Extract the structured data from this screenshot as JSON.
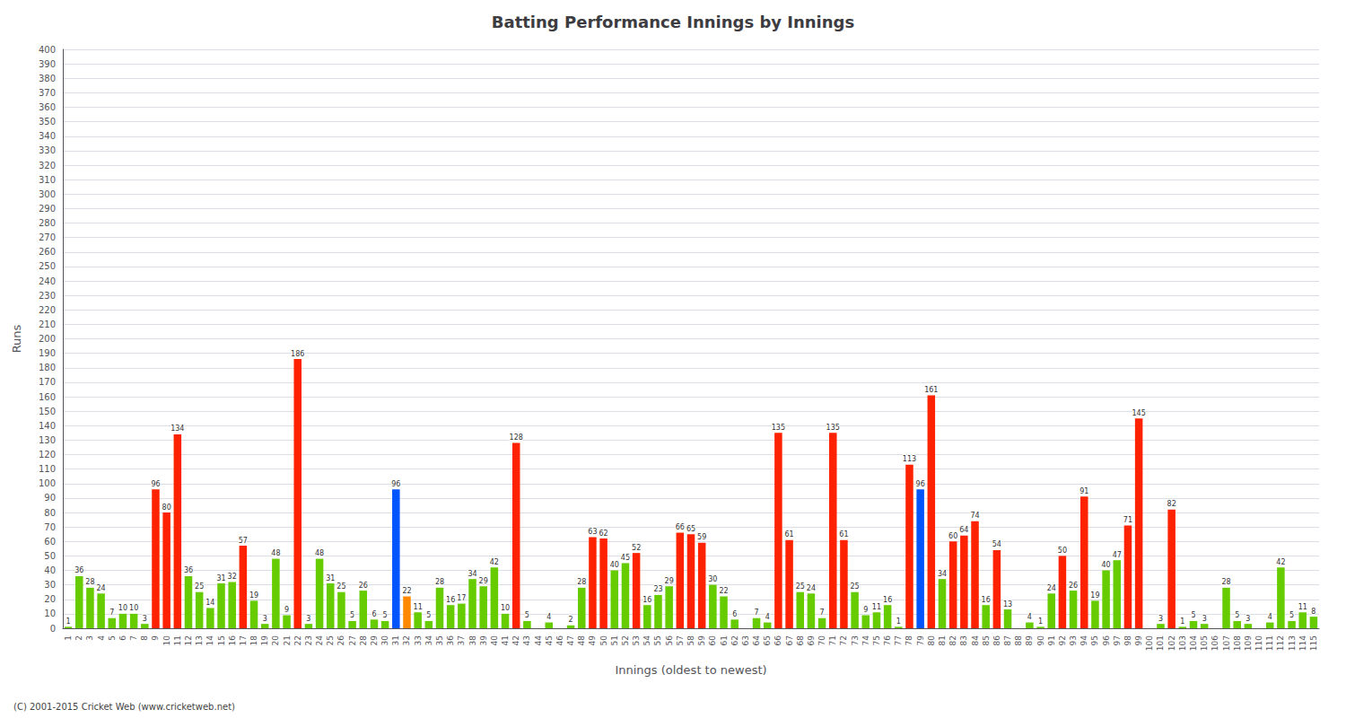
{
  "chart_data": {
    "type": "bar",
    "title": "Batting Performance Innings by Innings",
    "xlabel": "Innings (oldest to newest)",
    "ylabel": "Runs",
    "footnote": "(C) 2001-2015 Cricket Web (www.cricketweb.net)",
    "categories": [
      1,
      2,
      3,
      4,
      5,
      6,
      7,
      8,
      9,
      10,
      11,
      12,
      13,
      14,
      15,
      16,
      17,
      18,
      19,
      20,
      21,
      22,
      23,
      24,
      25,
      26,
      27,
      28,
      29,
      30,
      31,
      32,
      33,
      34,
      35,
      36,
      37,
      38,
      39,
      40,
      41,
      42,
      43,
      44,
      45,
      46,
      47,
      48,
      49,
      50,
      51,
      52,
      53,
      54,
      55,
      56,
      57,
      58,
      59,
      60,
      61,
      62,
      63,
      64,
      65,
      66,
      67,
      68,
      69,
      70,
      71,
      72,
      73,
      74,
      75,
      76,
      77,
      78,
      79,
      80,
      81,
      82,
      83,
      84,
      85,
      86,
      87,
      88,
      89,
      90,
      91,
      92,
      93,
      94,
      95,
      96,
      97,
      98,
      99,
      100,
      101,
      102,
      103,
      104,
      105,
      106,
      107,
      108,
      109,
      110,
      111,
      112,
      113,
      114,
      115
    ],
    "values": [
      1,
      36,
      28,
      24,
      7,
      10,
      10,
      3,
      96,
      80,
      134,
      36,
      25,
      14,
      31,
      32,
      57,
      19,
      3,
      48,
      9,
      186,
      3,
      48,
      31,
      25,
      5,
      26,
      6,
      5,
      96,
      22,
      11,
      5,
      28,
      16,
      17,
      34,
      29,
      42,
      10,
      128,
      5,
      0,
      4,
      0,
      2,
      28,
      63,
      62,
      40,
      45,
      52,
      16,
      23,
      29,
      66,
      65,
      59,
      30,
      22,
      6,
      0,
      7,
      4,
      135,
      61,
      25,
      24,
      7,
      135,
      61,
      25,
      9,
      11,
      16,
      1,
      113,
      96,
      161,
      34,
      60,
      64,
      74,
      16,
      54,
      13,
      0,
      4,
      1,
      24,
      50,
      26,
      91,
      19,
      40,
      47,
      71,
      145,
      0,
      3,
      82,
      1,
      5,
      3,
      0,
      28,
      5,
      3,
      0,
      4,
      42,
      5,
      11,
      8
    ],
    "value_labels": [
      "1",
      "36",
      "28",
      "24",
      "7",
      "10",
      "10",
      "3",
      "96",
      "80",
      "134",
      "36",
      "25",
      "14",
      "31",
      "32",
      "57",
      "19",
      "3",
      "48",
      "9",
      "186",
      "3",
      "48",
      "31",
      "25",
      "5",
      "26",
      "6",
      "5",
      "96",
      "22",
      "11",
      "5",
      "28",
      "16",
      "17",
      "34",
      "29",
      "42",
      "10",
      "128",
      "5",
      null,
      "4",
      null,
      "2",
      "28",
      "63",
      "62",
      "40",
      "45",
      "52",
      "16",
      "23",
      "29",
      "66",
      "65",
      "59",
      "30",
      "22",
      "6",
      null,
      "7",
      "4",
      "135",
      "61",
      "25",
      "24",
      "7",
      "135",
      "61",
      "25",
      "9",
      "11",
      "16",
      "1",
      "113",
      "96",
      "161",
      "34",
      "60",
      "64",
      "74",
      "16",
      "54",
      "13",
      null,
      "4",
      "1",
      "24",
      "50",
      "26",
      "91",
      "19",
      "40",
      "47",
      "71",
      "145",
      null,
      "3",
      "82",
      "1",
      "5",
      "3",
      null,
      "28",
      "5",
      "3",
      null,
      "4",
      "42",
      "5",
      "11",
      "8"
    ],
    "colors": [
      "#66cc00",
      "#66cc00",
      "#66cc00",
      "#66cc00",
      "#66cc00",
      "#66cc00",
      "#66cc00",
      "#66cc00",
      "#ff2200",
      "#ff2200",
      "#ff2200",
      "#66cc00",
      "#66cc00",
      "#66cc00",
      "#66cc00",
      "#66cc00",
      "#ff2200",
      "#66cc00",
      "#66cc00",
      "#66cc00",
      "#66cc00",
      "#ff2200",
      "#66cc00",
      "#66cc00",
      "#66cc00",
      "#66cc00",
      "#66cc00",
      "#66cc00",
      "#66cc00",
      "#66cc00",
      "#0055ff",
      "#ff8800",
      "#66cc00",
      "#66cc00",
      "#66cc00",
      "#66cc00",
      "#66cc00",
      "#66cc00",
      "#66cc00",
      "#66cc00",
      "#66cc00",
      "#ff2200",
      "#66cc00",
      "#66cc00",
      "#66cc00",
      "#66cc00",
      "#66cc00",
      "#66cc00",
      "#ff2200",
      "#ff2200",
      "#66cc00",
      "#66cc00",
      "#ff2200",
      "#66cc00",
      "#66cc00",
      "#66cc00",
      "#ff2200",
      "#ff2200",
      "#ff2200",
      "#66cc00",
      "#66cc00",
      "#66cc00",
      "#66cc00",
      "#66cc00",
      "#66cc00",
      "#ff2200",
      "#ff2200",
      "#66cc00",
      "#66cc00",
      "#66cc00",
      "#ff2200",
      "#ff2200",
      "#66cc00",
      "#66cc00",
      "#66cc00",
      "#66cc00",
      "#66cc00",
      "#ff2200",
      "#0055ff",
      "#ff2200",
      "#66cc00",
      "#ff2200",
      "#ff2200",
      "#ff2200",
      "#66cc00",
      "#ff2200",
      "#66cc00",
      "#66cc00",
      "#66cc00",
      "#66cc00",
      "#66cc00",
      "#ff2200",
      "#66cc00",
      "#ff2200",
      "#66cc00",
      "#66cc00",
      "#66cc00",
      "#ff2200",
      "#ff2200",
      "#66cc00",
      "#66cc00",
      "#ff2200",
      "#66cc00",
      "#66cc00",
      "#66cc00",
      "#66cc00",
      "#66cc00",
      "#66cc00",
      "#66cc00",
      "#66cc00",
      "#66cc00",
      "#66cc00",
      "#66cc00",
      "#66cc00",
      "#66cc00"
    ],
    "ylim": [
      0,
      400
    ],
    "yticks": [
      0,
      10,
      20,
      30,
      40,
      50,
      60,
      70,
      80,
      90,
      100,
      110,
      120,
      130,
      140,
      150,
      160,
      170,
      180,
      190,
      200,
      210,
      220,
      230,
      240,
      250,
      260,
      270,
      280,
      290,
      300,
      310,
      320,
      330,
      340,
      350,
      360,
      370,
      380,
      390,
      400
    ],
    "grid": true,
    "data_labels": true
  }
}
